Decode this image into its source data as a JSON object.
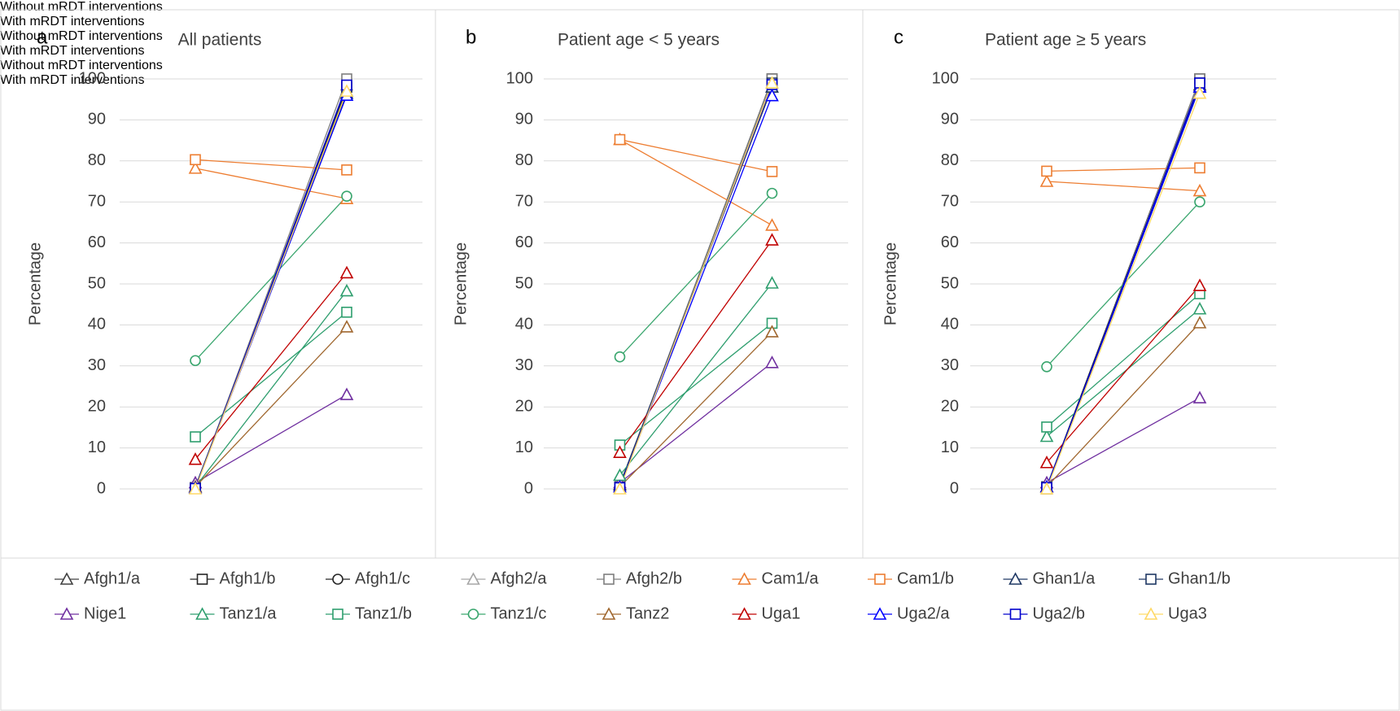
{
  "chart_data": [
    {
      "type": "line",
      "label": "a",
      "title": "All patients",
      "ylabel": "Percentage",
      "categories": [
        "Without mRDT interventions",
        "With mRDT interventions"
      ],
      "ylim": [
        0,
        100
      ],
      "yticks": [
        0,
        10,
        20,
        30,
        40,
        50,
        60,
        70,
        80,
        90,
        100
      ],
      "grid": true,
      "series": [
        {
          "name": "Afgh1/a",
          "color": "#404040",
          "marker": "triangle",
          "values": [
            0.5,
            97
          ]
        },
        {
          "name": "Afgh1/b",
          "color": "#262626",
          "marker": "square",
          "values": [
            0.3,
            98
          ]
        },
        {
          "name": "Afgh1/c",
          "color": "#262626",
          "marker": "circle",
          "values": [
            0.4,
            97.5
          ]
        },
        {
          "name": "Afgh2/a",
          "color": "#a6a6a6",
          "marker": "triangle",
          "values": [
            0.5,
            98.5
          ]
        },
        {
          "name": "Afgh2/b",
          "color": "#7f7f7f",
          "marker": "square",
          "values": [
            0.2,
            100
          ]
        },
        {
          "name": "Cam1/a",
          "color": "#ed7d31",
          "marker": "triangle",
          "values": [
            78.2,
            70.8
          ]
        },
        {
          "name": "Cam1/b",
          "color": "#ed7d31",
          "marker": "square",
          "values": [
            80.3,
            77.8
          ]
        },
        {
          "name": "Ghan1/a",
          "color": "#1f3864",
          "marker": "triangle",
          "values": [
            0.5,
            96.5
          ]
        },
        {
          "name": "Ghan1/b",
          "color": "#203864",
          "marker": "square",
          "values": [
            0.3,
            98
          ]
        },
        {
          "name": "Nige1",
          "color": "#7030a0",
          "marker": "triangle",
          "values": [
            1.5,
            23
          ]
        },
        {
          "name": "Tanz1/a",
          "color": "#2e9e6e",
          "marker": "triangle",
          "values": [
            0.5,
            48.3
          ]
        },
        {
          "name": "Tanz1/b",
          "color": "#2e9e6e",
          "marker": "square",
          "values": [
            12.7,
            43.1
          ]
        },
        {
          "name": "Tanz1/c",
          "color": "#3aa66e",
          "marker": "circle",
          "values": [
            31.3,
            71.4
          ]
        },
        {
          "name": "Tanz2",
          "color": "#a0672f",
          "marker": "triangle",
          "values": [
            0.5,
            39.5
          ]
        },
        {
          "name": "Uga1",
          "color": "#c00000",
          "marker": "triangle",
          "values": [
            7.2,
            52.7
          ]
        },
        {
          "name": "Uga2/a",
          "color": "#0000ff",
          "marker": "triangle",
          "values": [
            0.2,
            96
          ]
        },
        {
          "name": "Uga2/b",
          "color": "#0000cc",
          "marker": "square",
          "values": [
            0.1,
            98.5
          ]
        },
        {
          "name": "Uga3",
          "color": "#ffd966",
          "marker": "triangle",
          "values": [
            0,
            97
          ]
        }
      ]
    },
    {
      "type": "line",
      "label": "b",
      "title": "Patient age < 5 years",
      "ylabel": "Percentage",
      "categories": [
        "Without mRDT interventions",
        "With mRDT interventions"
      ],
      "ylim": [
        0,
        100
      ],
      "yticks": [
        0,
        10,
        20,
        30,
        40,
        50,
        60,
        70,
        80,
        90,
        100
      ],
      "grid": true,
      "series": [
        {
          "values": [
            1,
            98
          ]
        },
        {
          "values": [
            0.5,
            100
          ]
        },
        {
          "values": [
            0.5,
            99
          ]
        },
        {
          "values": [
            1,
            99
          ]
        },
        {
          "values": [
            0.5,
            100
          ]
        },
        {
          "values": [
            85.2,
            64.3
          ]
        },
        {
          "values": [
            85.2,
            77.4
          ]
        },
        {
          "values": [
            1,
            98
          ]
        },
        {
          "values": [
            0.5,
            99
          ]
        },
        {
          "values": [
            1.5,
            30.8
          ]
        },
        {
          "values": [
            3.3,
            50.2
          ]
        },
        {
          "values": [
            10.7,
            40.4
          ]
        },
        {
          "values": [
            32.2,
            72.1
          ]
        },
        {
          "values": [
            0.5,
            38.3
          ]
        },
        {
          "values": [
            8.9,
            60.7
          ]
        },
        {
          "values": [
            0.5,
            95.9
          ]
        },
        {
          "values": [
            0.3,
            98.6
          ]
        },
        {
          "values": [
            0,
            99
          ]
        }
      ]
    },
    {
      "type": "line",
      "label": "c",
      "title": "Patient age ≥ 5 years",
      "ylabel": "Percentage",
      "categories": [
        "Without mRDT interventions",
        "With mRDT interventions"
      ],
      "ylim": [
        0,
        100
      ],
      "yticks": [
        0,
        10,
        20,
        30,
        40,
        50,
        60,
        70,
        80,
        90,
        100
      ],
      "grid": true,
      "series": [
        {
          "values": [
            0.5,
            98.5
          ]
        },
        {
          "values": [
            0.5,
            100
          ]
        },
        {
          "values": [
            0.5,
            99
          ]
        },
        {
          "values": [
            0.5,
            98
          ]
        },
        {
          "values": [
            0,
            100
          ]
        },
        {
          "values": [
            75,
            72.7
          ]
        },
        {
          "values": [
            77.5,
            78.3
          ]
        },
        {
          "values": [
            0.5,
            98
          ]
        },
        {
          "values": [
            0.5,
            99
          ]
        },
        {
          "values": [
            1.5,
            22.2
          ]
        },
        {
          "values": [
            12.8,
            43.9
          ]
        },
        {
          "values": [
            15.1,
            47.6
          ]
        },
        {
          "values": [
            29.8,
            70
          ]
        },
        {
          "values": [
            0.5,
            40.5
          ]
        },
        {
          "values": [
            6.4,
            49.6
          ]
        },
        {
          "values": [
            0.5,
            98
          ]
        },
        {
          "values": [
            0.3,
            99
          ]
        },
        {
          "values": [
            0,
            96.5
          ]
        }
      ]
    }
  ]
}
